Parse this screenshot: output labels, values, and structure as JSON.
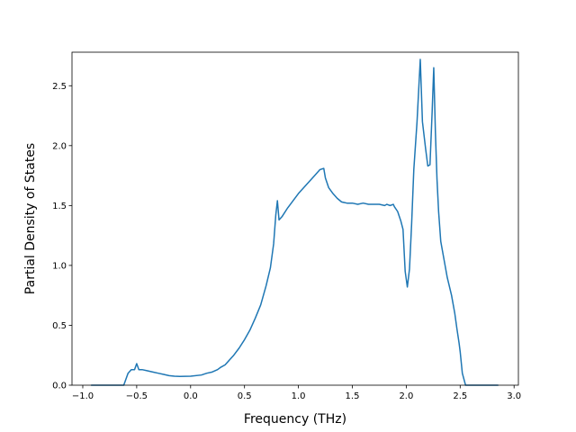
{
  "chart_data": {
    "type": "line",
    "title": "",
    "xlabel": "Frequency (THz)",
    "ylabel": "Partial Density of States",
    "xlim": [
      -1.1,
      3.04
    ],
    "ylim": [
      0,
      2.78
    ],
    "xticks": [
      -1.0,
      -0.5,
      0.0,
      0.5,
      1.0,
      1.5,
      2.0,
      2.5,
      3.0
    ],
    "xtick_labels": [
      "−1.0",
      "−0.5",
      "0.0",
      "0.5",
      "1.0",
      "1.5",
      "2.0",
      "2.5",
      "3.0"
    ],
    "yticks": [
      0.0,
      0.5,
      1.0,
      1.5,
      2.0,
      2.5
    ],
    "ytick_labels": [
      "0.0",
      "0.5",
      "1.0",
      "1.5",
      "2.0",
      "2.5"
    ],
    "grid": false,
    "legend": "none",
    "line_color": "#1f77b4",
    "series": [
      {
        "x": [
          -0.92,
          -0.8,
          -0.7,
          -0.62,
          -0.58,
          -0.55,
          -0.52,
          -0.5,
          -0.48,
          -0.45,
          -0.4,
          -0.35,
          -0.3,
          -0.25,
          -0.2,
          -0.15,
          -0.1,
          0.0,
          0.1,
          0.15,
          0.2,
          0.25,
          0.28,
          0.32,
          0.36,
          0.4,
          0.45,
          0.5,
          0.55,
          0.6,
          0.65,
          0.7,
          0.74,
          0.77,
          0.79,
          0.805,
          0.82,
          0.85,
          0.9,
          0.95,
          1.0,
          1.05,
          1.1,
          1.15,
          1.2,
          1.235,
          1.25,
          1.28,
          1.32,
          1.36,
          1.4,
          1.45,
          1.5,
          1.55,
          1.6,
          1.65,
          1.7,
          1.75,
          1.8,
          1.82,
          1.85,
          1.88,
          1.89,
          1.92,
          1.95,
          1.97,
          1.99,
          2.01,
          2.03,
          2.05,
          2.07,
          2.1,
          2.13,
          2.15,
          2.18,
          2.2,
          2.22,
          2.24,
          2.255,
          2.27,
          2.285,
          2.3,
          2.32,
          2.35,
          2.38,
          2.42,
          2.45,
          2.47,
          2.49,
          2.5,
          2.52,
          2.55,
          2.65,
          2.75,
          2.85
        ],
        "values": [
          0.0,
          0.0,
          0.0,
          0.0,
          0.1,
          0.13,
          0.13,
          0.18,
          0.13,
          0.13,
          0.12,
          0.11,
          0.1,
          0.09,
          0.08,
          0.075,
          0.073,
          0.075,
          0.085,
          0.1,
          0.11,
          0.13,
          0.15,
          0.17,
          0.21,
          0.25,
          0.31,
          0.38,
          0.46,
          0.56,
          0.67,
          0.83,
          0.98,
          1.18,
          1.42,
          1.54,
          1.38,
          1.41,
          1.48,
          1.54,
          1.6,
          1.65,
          1.7,
          1.75,
          1.8,
          1.81,
          1.73,
          1.65,
          1.6,
          1.56,
          1.53,
          1.52,
          1.52,
          1.51,
          1.52,
          1.51,
          1.51,
          1.51,
          1.5,
          1.51,
          1.5,
          1.51,
          1.49,
          1.45,
          1.37,
          1.3,
          0.95,
          0.82,
          0.97,
          1.35,
          1.8,
          2.2,
          2.72,
          2.2,
          1.97,
          1.83,
          1.84,
          2.28,
          2.65,
          2.12,
          1.72,
          1.45,
          1.2,
          1.05,
          0.9,
          0.75,
          0.6,
          0.47,
          0.35,
          0.28,
          0.1,
          0.0,
          0.0,
          0.0,
          0.0
        ]
      }
    ]
  }
}
